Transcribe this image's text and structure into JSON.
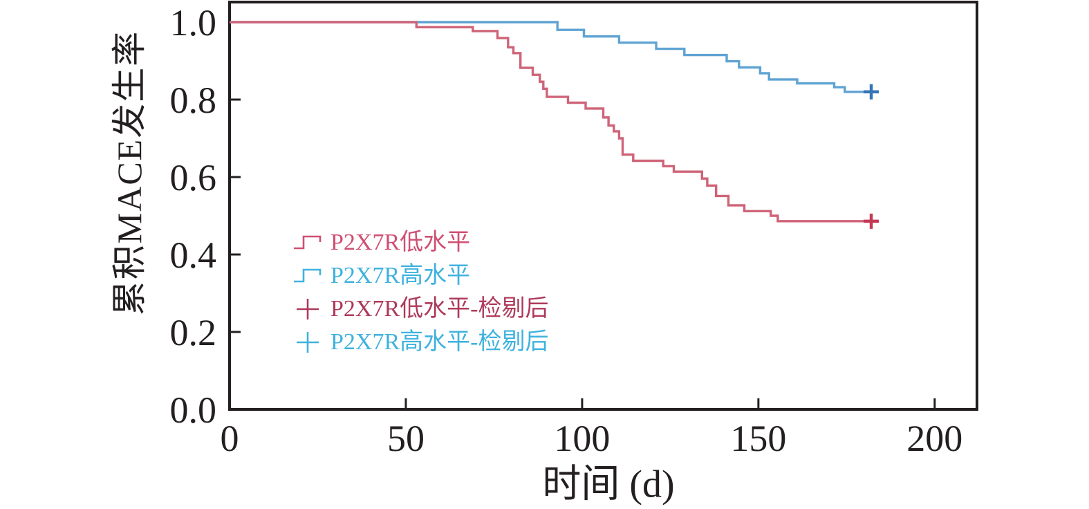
{
  "figure": {
    "x_title": "时间 (d)",
    "y_title": "累积MACE发生率"
  },
  "legend": {
    "items": [
      {
        "label": "P2X7R低水平",
        "marker": "step",
        "color": "#d04f72"
      },
      {
        "label": "P2X7R高水平",
        "marker": "step",
        "color": "#3fb2de"
      },
      {
        "label": "P2X7R低水平-检剔后",
        "marker": "plus",
        "color": "#ae3a5a"
      },
      {
        "label": "P2X7R高水平-检剔后",
        "marker": "plus",
        "color": "#3fb2de"
      }
    ]
  },
  "chart_data": {
    "type": "line",
    "subtype": "kaplan-meier-step",
    "title": "",
    "xlabel": "时间 (d)",
    "ylabel": "累积MACE发生率",
    "xlim": [
      0,
      212
    ],
    "ylim": [
      0,
      1.05
    ],
    "x_ticks": [
      0,
      50,
      100,
      150,
      200
    ],
    "x_tick_labels": [
      "0",
      "50",
      "100",
      "150",
      "200"
    ],
    "y_ticks": [
      0.0,
      0.2,
      0.4,
      0.6,
      0.8,
      1.0
    ],
    "y_tick_labels": [
      "0.0",
      "0.2",
      "0.4",
      "0.6",
      "0.8",
      "1.0"
    ],
    "grid": false,
    "legend_position": "inside-center-left",
    "axis_color": "#231f20",
    "series": [
      {
        "name": "P2X7R低水平",
        "color": "#cf6478",
        "censor_color": "#c43a55",
        "points": [
          [
            0,
            1.0
          ],
          [
            53,
            0.987
          ],
          [
            69,
            0.977
          ],
          [
            76,
            0.959
          ],
          [
            79,
            0.935
          ],
          [
            80.5,
            0.92
          ],
          [
            82.5,
            0.882
          ],
          [
            86,
            0.864
          ],
          [
            88,
            0.846
          ],
          [
            89,
            0.828
          ],
          [
            90,
            0.807
          ],
          [
            96,
            0.792
          ],
          [
            101,
            0.777
          ],
          [
            106,
            0.754
          ],
          [
            107.5,
            0.733
          ],
          [
            109,
            0.718
          ],
          [
            110.5,
            0.7
          ],
          [
            111.5,
            0.658
          ],
          [
            114.5,
            0.642
          ],
          [
            123,
            0.628
          ],
          [
            126,
            0.614
          ],
          [
            134,
            0.596
          ],
          [
            135.5,
            0.578
          ],
          [
            138,
            0.551
          ],
          [
            141.5,
            0.527
          ],
          [
            146,
            0.512
          ],
          [
            153.5,
            0.5
          ],
          [
            155.5,
            0.486
          ],
          [
            182,
            0.486
          ]
        ],
        "censored": [
          [
            182,
            0.486
          ]
        ]
      },
      {
        "name": "P2X7R高水平",
        "color": "#5fa3d3",
        "censor_color": "#3674b5",
        "points": [
          [
            0,
            1.0
          ],
          [
            93,
            0.98
          ],
          [
            100.5,
            0.963
          ],
          [
            110.5,
            0.947
          ],
          [
            121,
            0.931
          ],
          [
            129,
            0.915
          ],
          [
            141,
            0.899
          ],
          [
            144.5,
            0.883
          ],
          [
            150.5,
            0.868
          ],
          [
            153,
            0.852
          ],
          [
            161,
            0.842
          ],
          [
            171.5,
            0.832
          ],
          [
            174.5,
            0.82
          ],
          [
            182,
            0.82
          ]
        ],
        "censored": [
          [
            182,
            0.82
          ]
        ]
      }
    ]
  }
}
